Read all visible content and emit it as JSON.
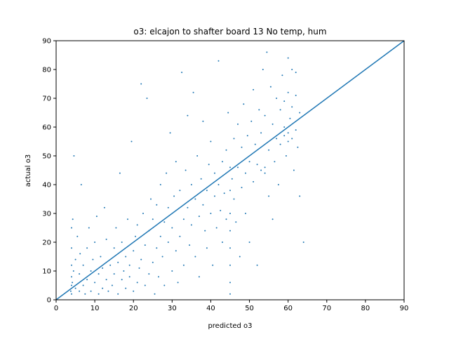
{
  "chart_data": {
    "type": "scatter",
    "title": "o3: elcajon to shafter board 13 No temp, hum",
    "xlabel": "predicted o3",
    "ylabel": "actual o3",
    "xlim": [
      0,
      90
    ],
    "ylim": [
      0,
      90
    ],
    "xticks": [
      0,
      10,
      20,
      30,
      40,
      50,
      60,
      70,
      80,
      90
    ],
    "yticks": [
      0,
      10,
      20,
      30,
      40,
      50,
      60,
      70,
      80,
      90
    ],
    "grid": false,
    "color": "#1f77b4",
    "reference_line": {
      "x": [
        0,
        90
      ],
      "y": [
        0,
        90
      ]
    },
    "points": [
      [
        4,
        2
      ],
      [
        4,
        5
      ],
      [
        4,
        8
      ],
      [
        4,
        12
      ],
      [
        4,
        18
      ],
      [
        4,
        25
      ],
      [
        3.8,
        3
      ],
      [
        4.2,
        6
      ],
      [
        4.5,
        10
      ],
      [
        5,
        4
      ],
      [
        5,
        14
      ],
      [
        5.5,
        22
      ],
      [
        4.3,
        28
      ],
      [
        4.6,
        50
      ],
      [
        6,
        3
      ],
      [
        6,
        9
      ],
      [
        6.2,
        16
      ],
      [
        6.5,
        40
      ],
      [
        7,
        5
      ],
      [
        7,
        12
      ],
      [
        7.5,
        2
      ],
      [
        8,
        7
      ],
      [
        8,
        18
      ],
      [
        8.5,
        25
      ],
      [
        9,
        3
      ],
      [
        9,
        10
      ],
      [
        9.5,
        14
      ],
      [
        10,
        6
      ],
      [
        10,
        20
      ],
      [
        10.5,
        29
      ],
      [
        11,
        2
      ],
      [
        11,
        9
      ],
      [
        11.5,
        15
      ],
      [
        12,
        4
      ],
      [
        12,
        11
      ],
      [
        12.5,
        32
      ],
      [
        13,
        7
      ],
      [
        13,
        21
      ],
      [
        13.5,
        3
      ],
      [
        14,
        12
      ],
      [
        14.5,
        5
      ],
      [
        15,
        9
      ],
      [
        15,
        18
      ],
      [
        15.5,
        25
      ],
      [
        16,
        2
      ],
      [
        16,
        13
      ],
      [
        16.5,
        44
      ],
      [
        17,
        7
      ],
      [
        17,
        20
      ],
      [
        17.5,
        10
      ],
      [
        18,
        4
      ],
      [
        18,
        15
      ],
      [
        18.5,
        28
      ],
      [
        19,
        8
      ],
      [
        19,
        12
      ],
      [
        19.5,
        55
      ],
      [
        20,
        3
      ],
      [
        20,
        17
      ],
      [
        20.5,
        22
      ],
      [
        21,
        6
      ],
      [
        21,
        26
      ],
      [
        21.5,
        11
      ],
      [
        22,
        14
      ],
      [
        22,
        75
      ],
      [
        22.5,
        30
      ],
      [
        23,
        5
      ],
      [
        23,
        19
      ],
      [
        23.5,
        70
      ],
      [
        24,
        9
      ],
      [
        24,
        24
      ],
      [
        24.5,
        35
      ],
      [
        25,
        13
      ],
      [
        25,
        28
      ],
      [
        25.5,
        2
      ],
      [
        26,
        18
      ],
      [
        26,
        33
      ],
      [
        26.5,
        8
      ],
      [
        27,
        22
      ],
      [
        27,
        40
      ],
      [
        27.5,
        15
      ],
      [
        28,
        27
      ],
      [
        28,
        5
      ],
      [
        28.5,
        44
      ],
      [
        29,
        20
      ],
      [
        29,
        32
      ],
      [
        29.5,
        58
      ],
      [
        30,
        10
      ],
      [
        30,
        25
      ],
      [
        30.5,
        36
      ],
      [
        31,
        17
      ],
      [
        31,
        48
      ],
      [
        31.5,
        6
      ],
      [
        32,
        22
      ],
      [
        32,
        38
      ],
      [
        32.5,
        79
      ],
      [
        33,
        28
      ],
      [
        33,
        12
      ],
      [
        33.5,
        45
      ],
      [
        34,
        32
      ],
      [
        34,
        64
      ],
      [
        34.5,
        19
      ],
      [
        35,
        26
      ],
      [
        35,
        40
      ],
      [
        35.5,
        72
      ],
      [
        36,
        15
      ],
      [
        36,
        35
      ],
      [
        36.5,
        50
      ],
      [
        37,
        29
      ],
      [
        37,
        8
      ],
      [
        37.5,
        42
      ],
      [
        38,
        33
      ],
      [
        38,
        62
      ],
      [
        38.5,
        24
      ],
      [
        39,
        38
      ],
      [
        39,
        18
      ],
      [
        39.5,
        47
      ],
      [
        40,
        30
      ],
      [
        40,
        55
      ],
      [
        40.5,
        12
      ],
      [
        41,
        36
      ],
      [
        41,
        44
      ],
      [
        41.5,
        25
      ],
      [
        42,
        40
      ],
      [
        42,
        83
      ],
      [
        42.5,
        31
      ],
      [
        43,
        48
      ],
      [
        43,
        20
      ],
      [
        43.5,
        37
      ],
      [
        44,
        52
      ],
      [
        44,
        28
      ],
      [
        44.5,
        65
      ],
      [
        45,
        2
      ],
      [
        45,
        6
      ],
      [
        45,
        12
      ],
      [
        45,
        18
      ],
      [
        45,
        24
      ],
      [
        45,
        30
      ],
      [
        45,
        38
      ],
      [
        45,
        46
      ],
      [
        45.5,
        42
      ],
      [
        46,
        35
      ],
      [
        46,
        56
      ],
      [
        46.5,
        27
      ],
      [
        47,
        46
      ],
      [
        47,
        61
      ],
      [
        47.5,
        15
      ],
      [
        48,
        39
      ],
      [
        48,
        53
      ],
      [
        48.5,
        68
      ],
      [
        49,
        44
      ],
      [
        49,
        30
      ],
      [
        49.5,
        57
      ],
      [
        50,
        48
      ],
      [
        50,
        20
      ],
      [
        50.5,
        62
      ],
      [
        51,
        41
      ],
      [
        51,
        73
      ],
      [
        51.5,
        54
      ],
      [
        52,
        47
      ],
      [
        52,
        12
      ],
      [
        52.5,
        66
      ],
      [
        53,
        45
      ],
      [
        53,
        58
      ],
      [
        53.5,
        80
      ],
      [
        54,
        44
      ],
      [
        54,
        46
      ],
      [
        54,
        64
      ],
      [
        54.5,
        86
      ],
      [
        55,
        36
      ],
      [
        55,
        52
      ],
      [
        55.5,
        74
      ],
      [
        56,
        28
      ],
      [
        56,
        61
      ],
      [
        56.5,
        48
      ],
      [
        57,
        56
      ],
      [
        57,
        70
      ],
      [
        57.5,
        40
      ],
      [
        58,
        54
      ],
      [
        58,
        66
      ],
      [
        58.5,
        78
      ],
      [
        59,
        57
      ],
      [
        59,
        60
      ],
      [
        59,
        69
      ],
      [
        59.5,
        50
      ],
      [
        60,
        55
      ],
      [
        60,
        58
      ],
      [
        60,
        72
      ],
      [
        60,
        84
      ],
      [
        60.5,
        63
      ],
      [
        61,
        56
      ],
      [
        61,
        67
      ],
      [
        61,
        80
      ],
      [
        61.5,
        45
      ],
      [
        62,
        59
      ],
      [
        62,
        71
      ],
      [
        62,
        79
      ],
      [
        62.5,
        53
      ],
      [
        63,
        65
      ],
      [
        63,
        36
      ],
      [
        64,
        20
      ]
    ]
  }
}
